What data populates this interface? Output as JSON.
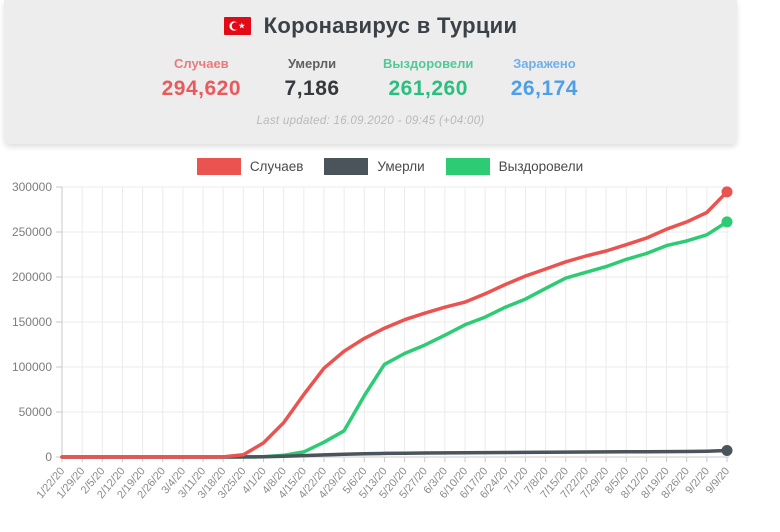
{
  "header": {
    "title": "Коронавирус в Турции",
    "flag_icon": "turkey-flag",
    "stats": [
      {
        "label": "Случаев",
        "value": "294,620",
        "color": "#e95a5c"
      },
      {
        "label": "Умерли",
        "value": "7,186",
        "color": "#35393c"
      },
      {
        "label": "Выздоровели",
        "value": "261,260",
        "color": "#29bf7f"
      },
      {
        "label": "Заражено",
        "value": "26,174",
        "color": "#4d9fe8"
      }
    ],
    "last_updated": "Last updated: 16.09.2020 - 09:45 (+04:00)"
  },
  "legend": [
    {
      "label": "Случаев",
      "color": "#ea5350"
    },
    {
      "label": "Умерли",
      "color": "#4a545a"
    },
    {
      "label": "Выздоровели",
      "color": "#2dcb73"
    }
  ],
  "chart_data": {
    "type": "line",
    "title": "",
    "xlabel": "",
    "ylabel": "",
    "ylim": [
      0,
      300000
    ],
    "yticks": [
      0,
      50000,
      100000,
      150000,
      200000,
      250000,
      300000
    ],
    "grid": true,
    "legend_position": "top",
    "categories": [
      "1/22/20",
      "1/29/20",
      "2/5/20",
      "2/12/20",
      "2/19/20",
      "2/26/20",
      "3/4/20",
      "3/11/20",
      "3/18/20",
      "3/25/20",
      "4/1/20",
      "4/8/20",
      "4/15/20",
      "4/22/20",
      "4/29/20",
      "5/6/20",
      "5/13/20",
      "5/20/20",
      "5/27/20",
      "6/3/20",
      "6/10/20",
      "6/17/20",
      "6/24/20",
      "7/1/20",
      "7/8/20",
      "7/15/20",
      "7/22/20",
      "7/29/20",
      "8/5/20",
      "8/12/20",
      "8/19/20",
      "8/26/20",
      "9/2/20",
      "9/9/20"
    ],
    "series": [
      {
        "name": "Случаев",
        "key": "cases",
        "color": "#ea5350",
        "values": [
          0,
          0,
          0,
          0,
          0,
          0,
          0,
          1,
          98,
          2433,
          15679,
          38226,
          69392,
          98674,
          117589,
          131744,
          143114,
          152587,
          159797,
          166422,
          172114,
          181298,
          191657,
          201098,
          208938,
          216873,
          223315,
          228924,
          235839,
          243180,
          253108,
          261194,
          271705,
          294620
        ]
      },
      {
        "name": "Умерли",
        "key": "deaths",
        "color": "#4a545a",
        "values": [
          0,
          0,
          0,
          0,
          0,
          0,
          0,
          0,
          9,
          59,
          277,
          812,
          1518,
          2376,
          3081,
          3584,
          3952,
          4222,
          4431,
          4609,
          4778,
          4882,
          5001,
          5150,
          5282,
          5440,
          5563,
          5659,
          5765,
          5873,
          6039,
          6163,
          6417,
          7186
        ]
      },
      {
        "name": "Выздоровели",
        "key": "recovered",
        "color": "#2dcb73",
        "values": [
          0,
          0,
          0,
          0,
          0,
          0,
          0,
          0,
          0,
          26,
          333,
          1846,
          5674,
          16477,
          29140,
          68166,
          102874,
          114990,
          124369,
          135322,
          146839,
          155431,
          166431,
          175422,
          187292,
          198820,
          205214,
          211561,
          219506,
          226155,
          234934,
          240087,
          246876,
          261260
        ]
      }
    ]
  },
  "chart_style": {
    "grid_color": "#ebebeb",
    "axis_color": "#c9c9c9",
    "x_label_color": "#8b8b8b",
    "y_label_color": "#7d7d7d"
  }
}
